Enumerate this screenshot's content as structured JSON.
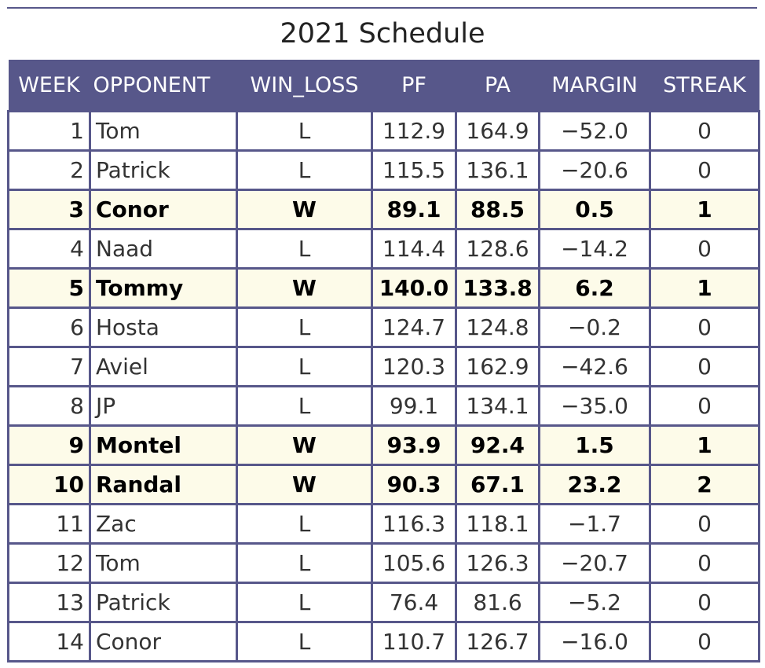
{
  "chart_data": {
    "type": "table",
    "title": "2021 Schedule",
    "columns": [
      "WEEK",
      "OPPONENT",
      "WIN_LOSS",
      "PF",
      "PA",
      "MARGIN",
      "STREAK"
    ],
    "rows": [
      [
        "1",
        "Tom",
        "L",
        "112.9",
        "164.9",
        "−52.0",
        "0"
      ],
      [
        "2",
        "Patrick",
        "L",
        "115.5",
        "136.1",
        "−20.6",
        "0"
      ],
      [
        "3",
        "Conor",
        "W",
        "89.1",
        "88.5",
        "0.5",
        "1"
      ],
      [
        "4",
        "Naad",
        "L",
        "114.4",
        "128.6",
        "−14.2",
        "0"
      ],
      [
        "5",
        "Tommy",
        "W",
        "140.0",
        "133.8",
        "6.2",
        "1"
      ],
      [
        "6",
        "Hosta",
        "L",
        "124.7",
        "124.8",
        "−0.2",
        "0"
      ],
      [
        "7",
        "Aviel",
        "L",
        "120.3",
        "162.9",
        "−42.6",
        "0"
      ],
      [
        "8",
        "JP",
        "L",
        "99.1",
        "134.1",
        "−35.0",
        "0"
      ],
      [
        "9",
        "Montel",
        "W",
        "93.9",
        "92.4",
        "1.5",
        "1"
      ],
      [
        "10",
        "Randal",
        "W",
        "90.3",
        "67.1",
        "23.2",
        "2"
      ],
      [
        "11",
        "Zac",
        "L",
        "116.3",
        "118.1",
        "−1.7",
        "0"
      ],
      [
        "12",
        "Tom",
        "L",
        "105.6",
        "126.3",
        "−20.7",
        "0"
      ],
      [
        "13",
        "Patrick",
        "L",
        "76.4",
        "81.6",
        "−5.2",
        "0"
      ],
      [
        "14",
        "Conor",
        "L",
        "110.7",
        "126.7",
        "−16.0",
        "0"
      ]
    ],
    "win_value": "W",
    "colors": {
      "header_bg": "#57578a",
      "header_text": "#ffffff",
      "win_row_bg": "#fdfbe9",
      "grid": "#57578a"
    }
  }
}
